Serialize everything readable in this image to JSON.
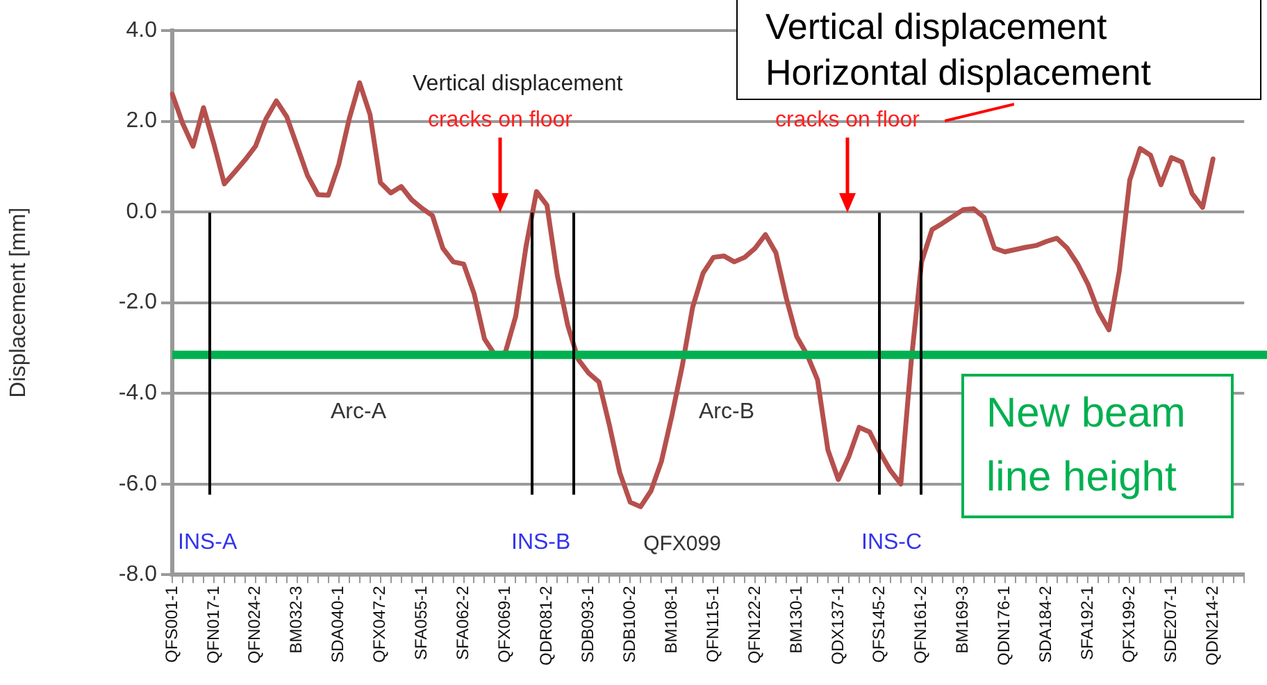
{
  "chart_data": {
    "type": "line",
    "ylabel": "Displacement [mm]",
    "categories": [
      "QFS001-1",
      null,
      null,
      null,
      "QFN017-1",
      null,
      null,
      null,
      "QFN024-2",
      null,
      null,
      null,
      "BM032-3",
      null,
      null,
      null,
      "SDA040-1",
      null,
      null,
      null,
      "QFX047-2",
      null,
      null,
      null,
      "SFA055-1",
      null,
      null,
      null,
      "SFA062-2",
      null,
      null,
      null,
      "QFX069-1",
      null,
      null,
      null,
      "QDR081-2",
      null,
      null,
      null,
      "SDB093-1",
      null,
      null,
      null,
      "SDB100-2",
      null,
      null,
      null,
      "BM108-1",
      null,
      null,
      null,
      "QFN115-1",
      null,
      null,
      null,
      "QFN122-2",
      null,
      null,
      null,
      "BM130-1",
      null,
      null,
      null,
      "QDX137-1",
      null,
      null,
      null,
      "QFS145-2",
      null,
      null,
      null,
      "QFN161-2",
      null,
      null,
      null,
      "BM169-3",
      null,
      null,
      null,
      "QDN176-1",
      null,
      null,
      null,
      "SDA184-2",
      null,
      null,
      null,
      "SFA192-1",
      null,
      null,
      null,
      "QFX199-2",
      null,
      null,
      null,
      "SDE207-1",
      null,
      null,
      null,
      "QDN214-2",
      null,
      null,
      null
    ],
    "series": [
      {
        "name": "Vertical displacement",
        "color": "#b5504d",
        "values": [
          2.6,
          1.95,
          1.45,
          2.3,
          1.5,
          0.62,
          0.88,
          1.15,
          1.45,
          2.05,
          2.45,
          2.1,
          1.45,
          0.8,
          0.38,
          0.37,
          1.05,
          2.05,
          2.85,
          2.15,
          0.65,
          0.42,
          0.56,
          0.27,
          0.08,
          -0.08,
          -0.8,
          -1.1,
          -1.15,
          -1.8,
          -2.8,
          -3.15,
          -3.1,
          -2.3,
          -0.75,
          0.45,
          0.15,
          -1.4,
          -2.5,
          -3.25,
          -3.55,
          -3.75,
          -4.7,
          -5.75,
          -6.4,
          -6.5,
          -6.15,
          -5.5,
          -4.5,
          -3.4,
          -2.1,
          -1.35,
          -1.0,
          -0.97,
          -1.1,
          -1.0,
          -0.8,
          -0.5,
          -0.9,
          -1.9,
          -2.75,
          -3.15,
          -3.7,
          -5.25,
          -5.9,
          -5.4,
          -4.75,
          -4.85,
          -5.3,
          -5.7,
          -6.0,
          -3.3,
          -1.1,
          -0.39,
          -0.25,
          -0.1,
          0.05,
          0.07,
          -0.12,
          -0.8,
          -0.88,
          -0.83,
          -0.78,
          -0.74,
          -0.65,
          -0.58,
          -0.8,
          -1.15,
          -1.6,
          -2.2,
          -2.6,
          -1.3,
          0.7,
          1.4,
          1.25,
          0.6,
          1.2,
          1.1,
          0.4,
          0.1,
          1.17,
          null,
          null,
          null
        ]
      }
    ],
    "ylim": [
      -8,
      4
    ],
    "yticks": [
      {
        "value": 4,
        "label": "4.0"
      },
      {
        "value": 2,
        "label": "2.0"
      },
      {
        "value": 0,
        "label": "0.0"
      },
      {
        "value": -2,
        "label": "-2.0"
      },
      {
        "value": -4,
        "label": "-4.0"
      },
      {
        "value": -6,
        "label": "-6.0"
      },
      {
        "value": -8,
        "label": "-8.0"
      }
    ],
    "grid": "y",
    "ref_lines": [
      {
        "axis": "y",
        "value": -3.15,
        "label": "New beam line height",
        "color": "#00b050"
      }
    ],
    "annotations": [
      "Vertical displacement",
      "Horizontal displacement",
      "cracks on floor",
      "cracks on floor",
      "Arc-A",
      "Arc-B",
      "QFX099",
      "INS-A",
      "INS-B",
      "INS-C"
    ]
  }
}
